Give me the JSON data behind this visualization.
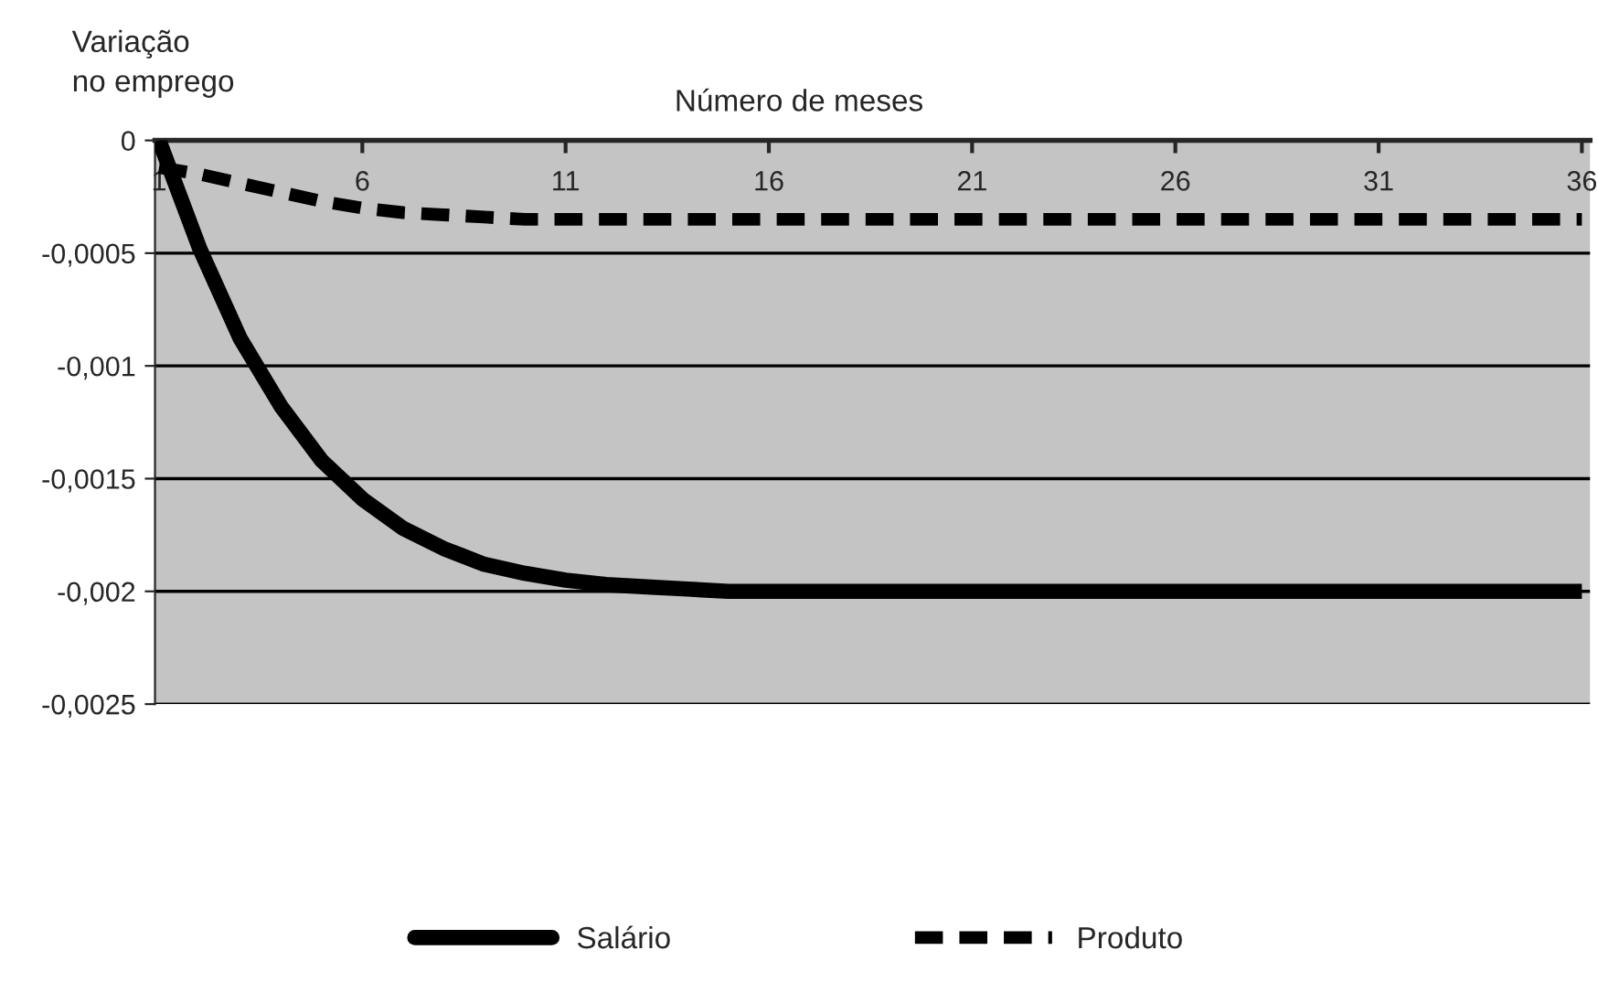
{
  "chart_data": {
    "type": "line",
    "xlabel": "Número de meses",
    "ylabel": "Variação\nno emprego",
    "x": [
      1,
      2,
      3,
      4,
      5,
      6,
      7,
      8,
      9,
      10,
      11,
      12,
      13,
      14,
      15,
      16,
      17,
      18,
      19,
      20,
      21,
      22,
      23,
      24,
      25,
      26,
      27,
      28,
      29,
      30,
      31,
      32,
      33,
      34,
      35,
      36
    ],
    "series": [
      {
        "name": "Salário",
        "color": "#000000",
        "line_style": "solid",
        "values": [
          0,
          -0.00048,
          -0.00088,
          -0.00118,
          -0.00142,
          -0.00159,
          -0.00172,
          -0.00181,
          -0.00188,
          -0.00192,
          -0.00195,
          -0.00197,
          -0.00198,
          -0.00199,
          -0.002,
          -0.002,
          -0.002,
          -0.002,
          -0.002,
          -0.002,
          -0.002,
          -0.002,
          -0.002,
          -0.002,
          -0.002,
          -0.002,
          -0.002,
          -0.002,
          -0.002,
          -0.002,
          -0.002,
          -0.002,
          -0.002,
          -0.002,
          -0.002,
          -0.002
        ]
      },
      {
        "name": "Produto",
        "color": "#000000",
        "line_style": "dashed",
        "values": [
          -0.00012,
          -0.00015,
          -0.00019,
          -0.00023,
          -0.00027,
          -0.0003,
          -0.00032,
          -0.00033,
          -0.00034,
          -0.00035,
          -0.00035,
          -0.00035,
          -0.00035,
          -0.00035,
          -0.00035,
          -0.00035,
          -0.00035,
          -0.00035,
          -0.00035,
          -0.00035,
          -0.00035,
          -0.00035,
          -0.00035,
          -0.00035,
          -0.00035,
          -0.00035,
          -0.00035,
          -0.00035,
          -0.00035,
          -0.00035,
          -0.00035,
          -0.00035,
          -0.00035,
          -0.00035,
          -0.00035,
          -0.00035
        ]
      }
    ],
    "xlim": [
      0.9,
      36.2
    ],
    "xticks": [
      1,
      6,
      11,
      16,
      21,
      26,
      31,
      36
    ],
    "ylim": [
      -0.0025,
      0
    ],
    "yticks": [
      {
        "value": -0.0025,
        "label": "-0,0025"
      },
      {
        "value": -0.002,
        "label": "-0,002"
      },
      {
        "value": -0.0015,
        "label": "-0,0015"
      },
      {
        "value": -0.001,
        "label": "-0,001"
      },
      {
        "value": -0.0005,
        "label": "-0,0005"
      },
      {
        "value": 0,
        "label": "0"
      }
    ],
    "grid": "y",
    "legend": "bottom",
    "marker": "none"
  }
}
